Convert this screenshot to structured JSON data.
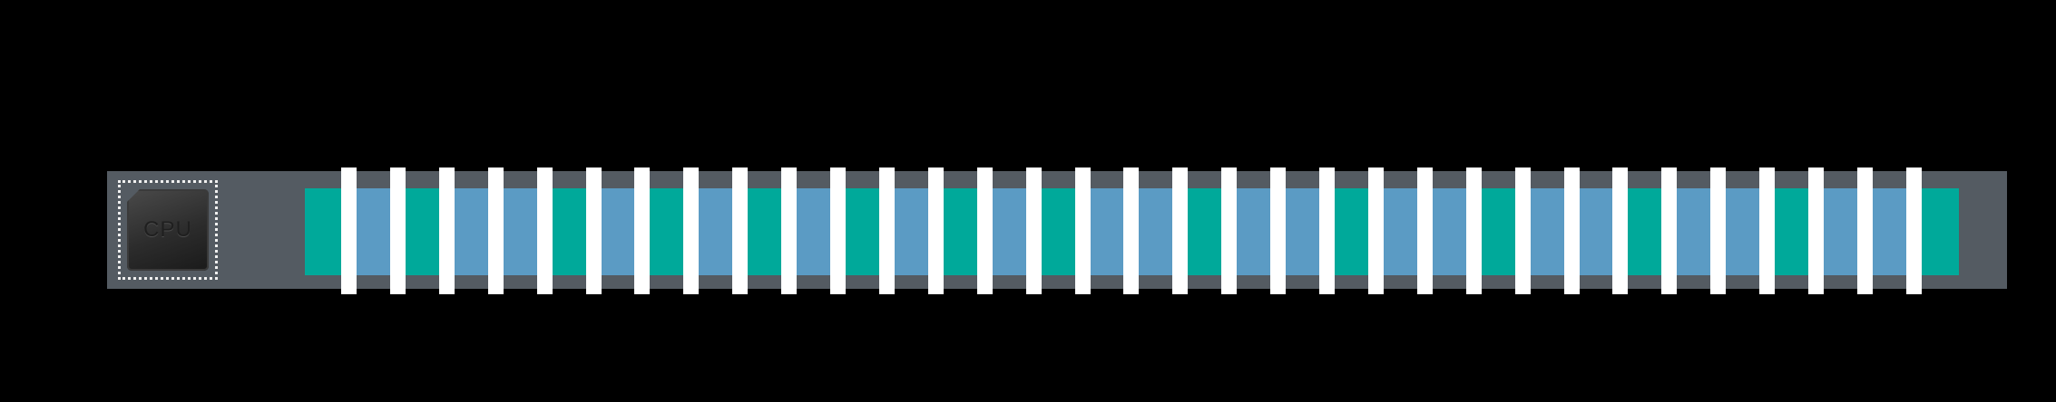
{
  "chip": {
    "label": "CPU",
    "icon": "cpu-chip-icon"
  },
  "colors": {
    "background": "#000000",
    "panel": "#545b62",
    "segment_a": "#00a99a",
    "segment_b": "#5b9bc4",
    "divider": "#ffffff"
  },
  "strip": {
    "divider_count": 33,
    "segment_pattern": [
      "a",
      "b",
      "a",
      "b",
      "b",
      "a",
      "b",
      "a",
      "b",
      "a",
      "b",
      "a",
      "b",
      "a",
      "b",
      "a",
      "b",
      "b",
      "a",
      "b",
      "b",
      "a",
      "b",
      "b",
      "a",
      "b",
      "b",
      "a",
      "b",
      "b",
      "a",
      "b",
      "b",
      "a",
      "b"
    ]
  }
}
